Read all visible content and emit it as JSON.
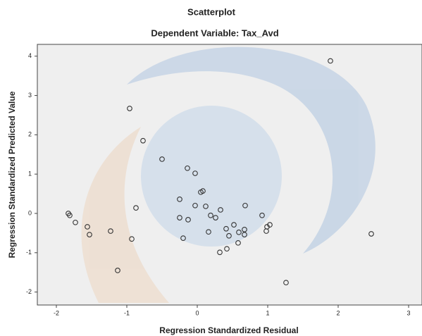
{
  "chart_data": {
    "type": "scatter",
    "title": "Scatterplot",
    "subtitle": "Dependent Variable: Tax_Avd",
    "x_label": "Regression Standardized Residual",
    "y_label": "Regression Standardized Predicted Value",
    "color": "#333333",
    "x": [
      1.89,
      -0.96,
      -0.77,
      -0.5,
      -0.14,
      -0.03,
      0.05,
      0.08,
      -0.25,
      -0.03,
      0.12,
      0.68,
      0.33,
      -0.87,
      -1.83,
      -1.81,
      -1.73,
      -1.56,
      -1.53,
      -1.23,
      -0.93,
      -1.13,
      -0.25,
      -0.13,
      0.19,
      0.26,
      -0.2,
      0.16,
      0.41,
      0.52,
      0.45,
      0.59,
      0.67,
      0.67,
      0.58,
      0.42,
      0.32,
      0.92,
      1.03,
      0.99,
      0.98,
      2.47,
      1.26
    ],
    "values": [
      3.88,
      2.67,
      1.85,
      1.38,
      1.15,
      1.02,
      0.54,
      0.57,
      0.36,
      0.2,
      0.18,
      0.2,
      0.09,
      0.14,
      0.0,
      -0.05,
      -0.23,
      -0.34,
      -0.54,
      -0.45,
      -0.65,
      -1.45,
      -0.11,
      -0.16,
      -0.05,
      -0.11,
      -0.63,
      -0.47,
      -0.39,
      -0.29,
      -0.57,
      -0.48,
      -0.41,
      -0.54,
      -0.75,
      -0.9,
      -0.99,
      -0.05,
      -0.29,
      -0.34,
      -0.45,
      -0.52,
      -1.76
    ],
    "xlim": [
      -2.27,
      3.19
    ],
    "xticks": [
      -2,
      -1,
      0,
      1,
      2,
      3
    ],
    "ylim": [
      -2.33,
      4.3
    ],
    "yticks": [
      -2,
      -1,
      0,
      1,
      2,
      3,
      4
    ]
  }
}
